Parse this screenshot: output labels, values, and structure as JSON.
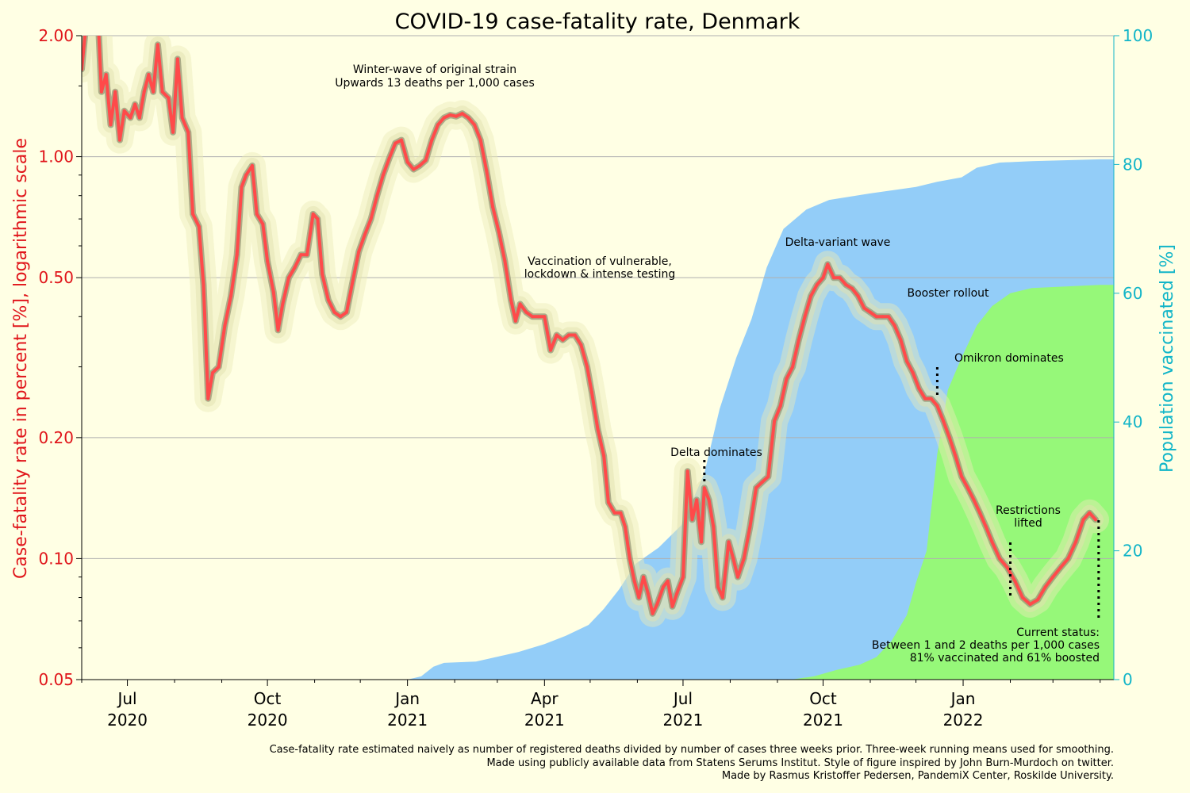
{
  "chart_data": {
    "type": "line",
    "title": "COVID-19 case-fatality rate, Denmark",
    "ylabel_left": "Case-fatality rate in percent [%], logarithmic scale",
    "ylabel_right": "Population vaccinated [%]",
    "left_scale": "log",
    "ylim_left": [
      0.05,
      2.0
    ],
    "ylim_right": [
      0,
      100
    ],
    "xlim": [
      "2020-06-01",
      "2022-04-10"
    ],
    "grid": "horizontal at major left ticks",
    "left_ticks": [
      "2.00",
      "1.00",
      "0.50",
      "0.20",
      "0.10",
      "0.05"
    ],
    "right_ticks": [
      "100",
      "80",
      "60",
      "40",
      "20",
      "0"
    ],
    "x_ticks": [
      {
        "date": "2020-07-01",
        "label": "Jul",
        "year": "2020"
      },
      {
        "date": "2020-10-01",
        "label": "Oct",
        "year": "2020"
      },
      {
        "date": "2021-01-01",
        "label": "Jan",
        "year": "2021"
      },
      {
        "date": "2021-04-01",
        "label": "Apr",
        "year": "2021"
      },
      {
        "date": "2021-07-01",
        "label": "Jul",
        "year": "2021"
      },
      {
        "date": "2021-10-01",
        "label": "Oct",
        "year": "2021"
      },
      {
        "date": "2022-01-01",
        "label": "Jan",
        "year": "2022"
      }
    ],
    "colors": {
      "cfr_line": "#FF4A4A",
      "vaccinated": "#93CDF8",
      "boosted": "#96F879",
      "left_axis": "#E0161B",
      "right_axis": "#12B5C8"
    },
    "series": [
      {
        "type": "line",
        "axis": "left",
        "points": [
          [
            "2020-06-01",
            1.65
          ],
          [
            "2020-06-06",
            2.6
          ],
          [
            "2020-06-12",
            2.1
          ],
          [
            "2020-06-14",
            1.45
          ],
          [
            "2020-06-17",
            1.6
          ],
          [
            "2020-06-20",
            1.2
          ],
          [
            "2020-06-23",
            1.45
          ],
          [
            "2020-06-26",
            1.1
          ],
          [
            "2020-06-29",
            1.3
          ],
          [
            "2020-07-03",
            1.25
          ],
          [
            "2020-07-06",
            1.35
          ],
          [
            "2020-07-09",
            1.25
          ],
          [
            "2020-07-12",
            1.45
          ],
          [
            "2020-07-15",
            1.6
          ],
          [
            "2020-07-18",
            1.45
          ],
          [
            "2020-07-21",
            1.9
          ],
          [
            "2020-07-24",
            1.45
          ],
          [
            "2020-07-28",
            1.4
          ],
          [
            "2020-07-31",
            1.15
          ],
          [
            "2020-08-03",
            1.75
          ],
          [
            "2020-08-06",
            1.25
          ],
          [
            "2020-08-10",
            1.15
          ],
          [
            "2020-08-13",
            0.72
          ],
          [
            "2020-08-17",
            0.67
          ],
          [
            "2020-08-20",
            0.48
          ],
          [
            "2020-08-23",
            0.25
          ],
          [
            "2020-08-26",
            0.29
          ],
          [
            "2020-08-30",
            0.3
          ],
          [
            "2020-09-03",
            0.38
          ],
          [
            "2020-09-07",
            0.45
          ],
          [
            "2020-09-11",
            0.57
          ],
          [
            "2020-09-14",
            0.84
          ],
          [
            "2020-09-17",
            0.9
          ],
          [
            "2020-09-21",
            0.95
          ],
          [
            "2020-09-24",
            0.72
          ],
          [
            "2020-09-28",
            0.68
          ],
          [
            "2020-10-01",
            0.55
          ],
          [
            "2020-10-05",
            0.46
          ],
          [
            "2020-10-08",
            0.37
          ],
          [
            "2020-10-11",
            0.43
          ],
          [
            "2020-10-15",
            0.5
          ],
          [
            "2020-10-19",
            0.53
          ],
          [
            "2020-10-23",
            0.57
          ],
          [
            "2020-10-27",
            0.57
          ],
          [
            "2020-10-31",
            0.72
          ],
          [
            "2020-11-03",
            0.7
          ],
          [
            "2020-11-06",
            0.51
          ],
          [
            "2020-11-10",
            0.44
          ],
          [
            "2020-11-14",
            0.41
          ],
          [
            "2020-11-18",
            0.4
          ],
          [
            "2020-11-22",
            0.41
          ],
          [
            "2020-11-26",
            0.49
          ],
          [
            "2020-11-30",
            0.58
          ],
          [
            "2020-12-04",
            0.64
          ],
          [
            "2020-12-08",
            0.7
          ],
          [
            "2020-12-12",
            0.8
          ],
          [
            "2020-12-16",
            0.9
          ],
          [
            "2020-12-20",
            0.99
          ],
          [
            "2020-12-24",
            1.08
          ],
          [
            "2020-12-28",
            1.1
          ],
          [
            "2021-01-01",
            0.97
          ],
          [
            "2021-01-05",
            0.93
          ],
          [
            "2021-01-09",
            0.95
          ],
          [
            "2021-01-13",
            0.98
          ],
          [
            "2021-01-17",
            1.1
          ],
          [
            "2021-01-21",
            1.2
          ],
          [
            "2021-01-25",
            1.25
          ],
          [
            "2021-01-29",
            1.27
          ],
          [
            "2021-02-02",
            1.26
          ],
          [
            "2021-02-06",
            1.28
          ],
          [
            "2021-02-10",
            1.25
          ],
          [
            "2021-02-14",
            1.2
          ],
          [
            "2021-02-18",
            1.1
          ],
          [
            "2021-02-22",
            0.92
          ],
          [
            "2021-02-26",
            0.75
          ],
          [
            "2021-03-02",
            0.65
          ],
          [
            "2021-03-06",
            0.55
          ],
          [
            "2021-03-10",
            0.44
          ],
          [
            "2021-03-13",
            0.39
          ],
          [
            "2021-03-16",
            0.43
          ],
          [
            "2021-03-20",
            0.41
          ],
          [
            "2021-03-24",
            0.4
          ],
          [
            "2021-03-28",
            0.4
          ],
          [
            "2021-04-01",
            0.4
          ],
          [
            "2021-04-05",
            0.33
          ],
          [
            "2021-04-09",
            0.36
          ],
          [
            "2021-04-13",
            0.35
          ],
          [
            "2021-04-17",
            0.36
          ],
          [
            "2021-04-21",
            0.36
          ],
          [
            "2021-04-25",
            0.34
          ],
          [
            "2021-04-29",
            0.3
          ],
          [
            "2021-05-02",
            0.26
          ],
          [
            "2021-05-06",
            0.21
          ],
          [
            "2021-05-10",
            0.18
          ],
          [
            "2021-05-13",
            0.138
          ],
          [
            "2021-05-17",
            0.13
          ],
          [
            "2021-05-21",
            0.13
          ],
          [
            "2021-05-24",
            0.12
          ],
          [
            "2021-05-27",
            0.1
          ],
          [
            "2021-05-30",
            0.088
          ],
          [
            "2021-06-02",
            0.08
          ],
          [
            "2021-06-05",
            0.09
          ],
          [
            "2021-06-08",
            0.082
          ],
          [
            "2021-06-11",
            0.073
          ],
          [
            "2021-06-14",
            0.077
          ],
          [
            "2021-06-18",
            0.085
          ],
          [
            "2021-06-21",
            0.088
          ],
          [
            "2021-06-24",
            0.076
          ],
          [
            "2021-06-27",
            0.082
          ],
          [
            "2021-07-01",
            0.09
          ],
          [
            "2021-07-04",
            0.165
          ],
          [
            "2021-07-07",
            0.125
          ],
          [
            "2021-07-10",
            0.14
          ],
          [
            "2021-07-13",
            0.11
          ],
          [
            "2021-07-15",
            0.15
          ],
          [
            "2021-07-18",
            0.14
          ],
          [
            "2021-07-21",
            0.12
          ],
          [
            "2021-07-24",
            0.085
          ],
          [
            "2021-07-27",
            0.08
          ],
          [
            "2021-07-31",
            0.11
          ],
          [
            "2021-08-03",
            0.1
          ],
          [
            "2021-08-06",
            0.09
          ],
          [
            "2021-08-10",
            0.1
          ],
          [
            "2021-08-14",
            0.12
          ],
          [
            "2021-08-18",
            0.15
          ],
          [
            "2021-08-22",
            0.155
          ],
          [
            "2021-08-26",
            0.16
          ],
          [
            "2021-08-30",
            0.22
          ],
          [
            "2021-09-03",
            0.24
          ],
          [
            "2021-09-07",
            0.28
          ],
          [
            "2021-09-11",
            0.3
          ],
          [
            "2021-09-15",
            0.35
          ],
          [
            "2021-09-19",
            0.4
          ],
          [
            "2021-09-23",
            0.45
          ],
          [
            "2021-09-27",
            0.48
          ],
          [
            "2021-10-01",
            0.5
          ],
          [
            "2021-10-04",
            0.54
          ],
          [
            "2021-10-08",
            0.5
          ],
          [
            "2021-10-12",
            0.5
          ],
          [
            "2021-10-16",
            0.48
          ],
          [
            "2021-10-20",
            0.47
          ],
          [
            "2021-10-24",
            0.45
          ],
          [
            "2021-10-28",
            0.42
          ],
          [
            "2021-11-01",
            0.41
          ],
          [
            "2021-11-05",
            0.4
          ],
          [
            "2021-11-09",
            0.4
          ],
          [
            "2021-11-13",
            0.4
          ],
          [
            "2021-11-17",
            0.38
          ],
          [
            "2021-11-21",
            0.35
          ],
          [
            "2021-11-25",
            0.31
          ],
          [
            "2021-11-29",
            0.29
          ],
          [
            "2021-12-03",
            0.265
          ],
          [
            "2021-12-07",
            0.25
          ],
          [
            "2021-12-11",
            0.25
          ],
          [
            "2021-12-15",
            0.24
          ],
          [
            "2021-12-19",
            0.22
          ],
          [
            "2021-12-23",
            0.2
          ],
          [
            "2021-12-27",
            0.18
          ],
          [
            "2021-12-31",
            0.16
          ],
          [
            "2022-01-04",
            0.15
          ],
          [
            "2022-01-08",
            0.14
          ],
          [
            "2022-01-12",
            0.13
          ],
          [
            "2022-01-16",
            0.12
          ],
          [
            "2022-01-20",
            0.11
          ],
          [
            "2022-01-25",
            0.1
          ],
          [
            "2022-01-30",
            0.095
          ],
          [
            "2022-02-04",
            0.088
          ],
          [
            "2022-02-09",
            0.08
          ],
          [
            "2022-02-14",
            0.077
          ],
          [
            "2022-02-19",
            0.079
          ],
          [
            "2022-02-24",
            0.085
          ],
          [
            "2022-03-01",
            0.09
          ],
          [
            "2022-03-06",
            0.095
          ],
          [
            "2022-03-11",
            0.1
          ],
          [
            "2022-03-16",
            0.11
          ],
          [
            "2022-03-21",
            0.125
          ],
          [
            "2022-03-25",
            0.13
          ],
          [
            "2022-03-29",
            0.125
          ]
        ]
      },
      {
        "name": "",
        "type": "area",
        "axis": "right",
        "points": [
          [
            "2021-01-01",
            0
          ],
          [
            "2021-01-10",
            0.5
          ],
          [
            "2021-01-18",
            2.0
          ],
          [
            "2021-01-25",
            2.6
          ],
          [
            "2021-02-15",
            2.8
          ],
          [
            "2021-02-28",
            3.5
          ],
          [
            "2021-03-15",
            4.3
          ],
          [
            "2021-04-01",
            5.5
          ],
          [
            "2021-04-15",
            6.8
          ],
          [
            "2021-04-30",
            8.5
          ],
          [
            "2021-05-10",
            11
          ],
          [
            "2021-05-20",
            14
          ],
          [
            "2021-05-31",
            18
          ],
          [
            "2021-06-15",
            20.5
          ],
          [
            "2021-06-30",
            24
          ],
          [
            "2021-07-15",
            32
          ],
          [
            "2021-07-25",
            42
          ],
          [
            "2021-08-05",
            50
          ],
          [
            "2021-08-15",
            56
          ],
          [
            "2021-08-25",
            64
          ],
          [
            "2021-09-05",
            70
          ],
          [
            "2021-09-20",
            73
          ],
          [
            "2021-10-05",
            74.5
          ],
          [
            "2021-11-01",
            75.5
          ],
          [
            "2021-12-01",
            76.5
          ],
          [
            "2021-12-15",
            77.3
          ],
          [
            "2021-12-31",
            78
          ],
          [
            "2022-01-10",
            79.5
          ],
          [
            "2022-01-25",
            80.3
          ],
          [
            "2022-02-15",
            80.5
          ],
          [
            "2022-04-01",
            80.8
          ]
        ]
      },
      {
        "name": "",
        "type": "area",
        "axis": "right",
        "points": [
          [
            "2021-09-10",
            0
          ],
          [
            "2021-09-25",
            0.5
          ],
          [
            "2021-10-10",
            1.5
          ],
          [
            "2021-10-25",
            2.3
          ],
          [
            "2021-11-05",
            3.5
          ],
          [
            "2021-11-15",
            6
          ],
          [
            "2021-11-25",
            10
          ],
          [
            "2021-12-01",
            15
          ],
          [
            "2021-12-08",
            20
          ],
          [
            "2021-12-15",
            35
          ],
          [
            "2021-12-22",
            45
          ],
          [
            "2021-12-31",
            50
          ],
          [
            "2022-01-10",
            55
          ],
          [
            "2022-01-20",
            58
          ],
          [
            "2022-02-01",
            60
          ],
          [
            "2022-02-15",
            60.8
          ],
          [
            "2022-04-01",
            61.3
          ]
        ]
      }
    ],
    "annotations": [
      {
        "lines": [
          "Winter-wave of original strain",
          "Upwards 13 deaths per 1,000 cases"
        ]
      },
      {
        "lines": [
          "Vaccination of vulnerable,",
          "lockdown & intense testing"
        ]
      },
      {
        "lines": [
          "Delta dominates"
        ],
        "marker_date": "2021-07-15"
      },
      {
        "lines": [
          "Delta-variant wave"
        ]
      },
      {
        "lines": [
          "Booster rollout"
        ]
      },
      {
        "lines": [
          "Omikron dominates"
        ],
        "marker_date": "2021-12-15"
      },
      {
        "lines": [
          "Restrictions",
          "lifted"
        ],
        "marker_date": "2022-02-01"
      },
      {
        "lines": [
          "Current status:",
          "Between 1 and 2 deaths per 1,000 cases",
          "81% vaccinated and 61% boosted"
        ],
        "marker_date": "2022-03-31"
      }
    ],
    "footer": [
      "Case-fatality rate estimated naively as number of registered deaths divided by number of cases three weeks prior. Three-week running means used for smoothing.",
      "Made using publicly available data from Statens Serums Institut. Style of figure inspired by John Burn-Murdoch on twitter.",
      "Made by Rasmus Kristoffer Pedersen, PandemiX Center, Roskilde University."
    ]
  }
}
